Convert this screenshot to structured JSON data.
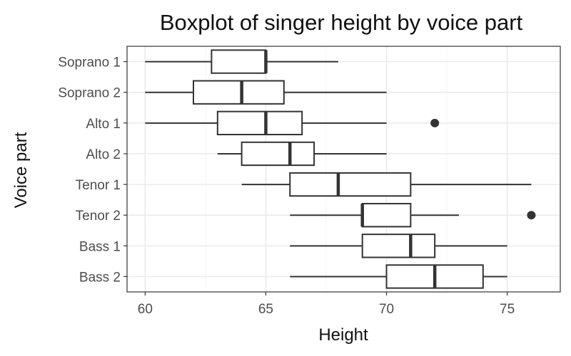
{
  "chart_data": {
    "type": "boxplot",
    "title": "Boxplot of singer height by voice part",
    "xlabel": "Height",
    "ylabel": "Voice part",
    "xlim": [
      59.25,
      77.2
    ],
    "x_ticks": [
      60,
      65,
      70,
      75
    ],
    "grid": true,
    "categories": [
      "Soprano 1",
      "Soprano 2",
      "Alto 1",
      "Alto 2",
      "Tenor 1",
      "Tenor 2",
      "Bass 1",
      "Bass 2"
    ],
    "boxes": [
      {
        "name": "Soprano 1",
        "min": 60,
        "q1": 62.75,
        "median": 65,
        "q3": 65,
        "max": 68,
        "outliers": []
      },
      {
        "name": "Soprano 2",
        "min": 60,
        "q1": 62,
        "median": 64,
        "q3": 65.75,
        "max": 70,
        "outliers": []
      },
      {
        "name": "Alto 1",
        "min": 60,
        "q1": 63,
        "median": 65,
        "q3": 66.5,
        "max": 70,
        "outliers": [
          72
        ]
      },
      {
        "name": "Alto 2",
        "min": 63,
        "q1": 64,
        "median": 66,
        "q3": 67,
        "max": 70,
        "outliers": []
      },
      {
        "name": "Tenor 1",
        "min": 64,
        "q1": 66,
        "median": 68,
        "q3": 71,
        "max": 76,
        "outliers": []
      },
      {
        "name": "Tenor 2",
        "min": 66,
        "q1": 69,
        "median": 69,
        "q3": 71,
        "max": 73,
        "outliers": [
          76
        ]
      },
      {
        "name": "Bass 1",
        "min": 66,
        "q1": 69,
        "median": 71,
        "q3": 72,
        "max": 75,
        "outliers": []
      },
      {
        "name": "Bass 2",
        "min": 66,
        "q1": 70,
        "median": 72,
        "q3": 74,
        "max": 75,
        "outliers": []
      }
    ]
  }
}
